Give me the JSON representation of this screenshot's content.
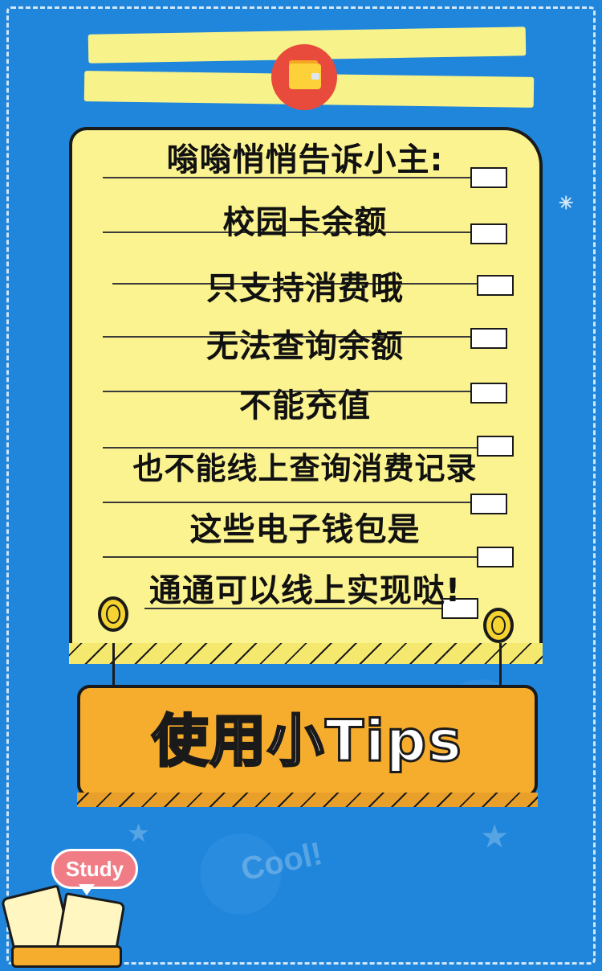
{
  "note": {
    "lines": [
      "嗡嗡悄悄告诉小主:",
      "校园卡余额",
      "只支持消费哦",
      "无法查询余额",
      "不能充值",
      "也不能线上查询消费记录",
      "这些电子钱包是",
      "通通可以线上实现哒!"
    ]
  },
  "banner": {
    "title": "使用小Tips"
  },
  "study_badge": {
    "label": "Study"
  },
  "background_doodle": {
    "text": "Cool!"
  },
  "colors": {
    "background": "#1f86dc",
    "note_paper": "#fbf38f",
    "banner": "#f6ad2d",
    "wallet_circle": "#e84b3c",
    "study_bubble": "#f07d86"
  },
  "icons": [
    "wallet-icon",
    "open-book-icon"
  ]
}
